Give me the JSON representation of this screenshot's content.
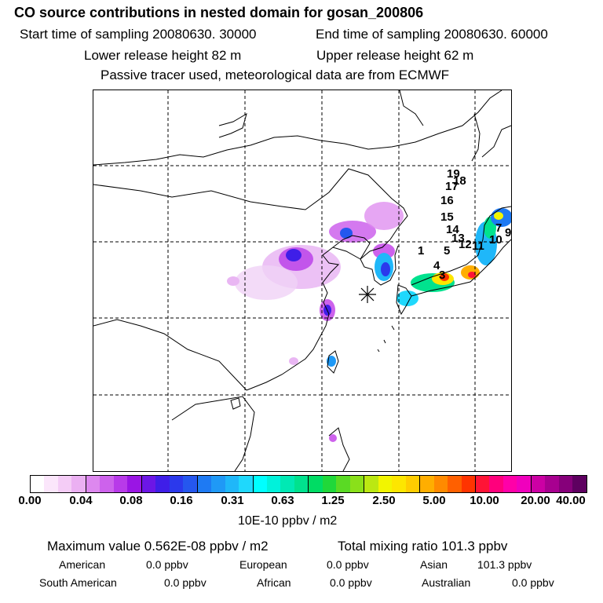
{
  "title": "CO  source contributions in nested domain for gosan_200806",
  "header": {
    "start": "Start time of sampling 20080630. 30000",
    "end": "End time of sampling 20080630. 60000",
    "lower": "Lower release height   82 m",
    "upper": "Upper release height   62 m",
    "tracer": "Passive tracer used, meteorological data are from ECMWF"
  },
  "map": {
    "trajectory_labels": [
      "1",
      "3",
      "4",
      "5",
      "7",
      "9",
      "10",
      "11",
      "12",
      "13",
      "14",
      "15",
      "16",
      "17",
      "18",
      "19"
    ],
    "receptor_marker": "gosan-receptor"
  },
  "colorbar": {
    "colors": [
      "#ffffff",
      "#fbe6fb",
      "#f4ccf6",
      "#ebb0f2",
      "#dd88ef",
      "#cd62ec",
      "#b83ae9",
      "#9a15e4",
      "#6c16e6",
      "#3f1ee8",
      "#2b39ec",
      "#2557ef",
      "#1e7af3",
      "#1f99f6",
      "#1fb7f9",
      "#1fd8fc",
      "#00ffff",
      "#00f2db",
      "#00e9b4",
      "#00e28e",
      "#00dc64",
      "#20d83a",
      "#5ada24",
      "#8ae01a",
      "#bbe812",
      "#f2f500",
      "#fde600",
      "#ffcd00",
      "#ffae00",
      "#ff8a00",
      "#ff6000",
      "#ff3400",
      "#ff1436",
      "#ff007c",
      "#ff00a8",
      "#f000bd",
      "#cc00a4",
      "#a80090",
      "#86007a",
      "#5e0060"
    ],
    "tick_labels": [
      "0.00",
      "0.04",
      "0.08",
      "0.16",
      "0.31",
      "0.63",
      "1.25",
      "2.50",
      "5.00",
      "10.00",
      "20.00",
      "40.00"
    ],
    "units": "10E-10 ppbv / m2"
  },
  "stats": {
    "max_value": "Maximum value  0.562E-08 ppbv / m2",
    "total_mixing": "Total mixing ratio      101.3 ppbv",
    "row1": [
      {
        "label": "American",
        "value": "0.0 ppbv"
      },
      {
        "label": "European",
        "value": "0.0 ppbv"
      },
      {
        "label": "Asian",
        "value": "101.3 ppbv"
      }
    ],
    "row2": [
      {
        "label": "South American",
        "value": "0.0 ppbv"
      },
      {
        "label": "African",
        "value": "0.0 ppbv"
      },
      {
        "label": "Australian",
        "value": "0.0 ppbv"
      }
    ]
  }
}
